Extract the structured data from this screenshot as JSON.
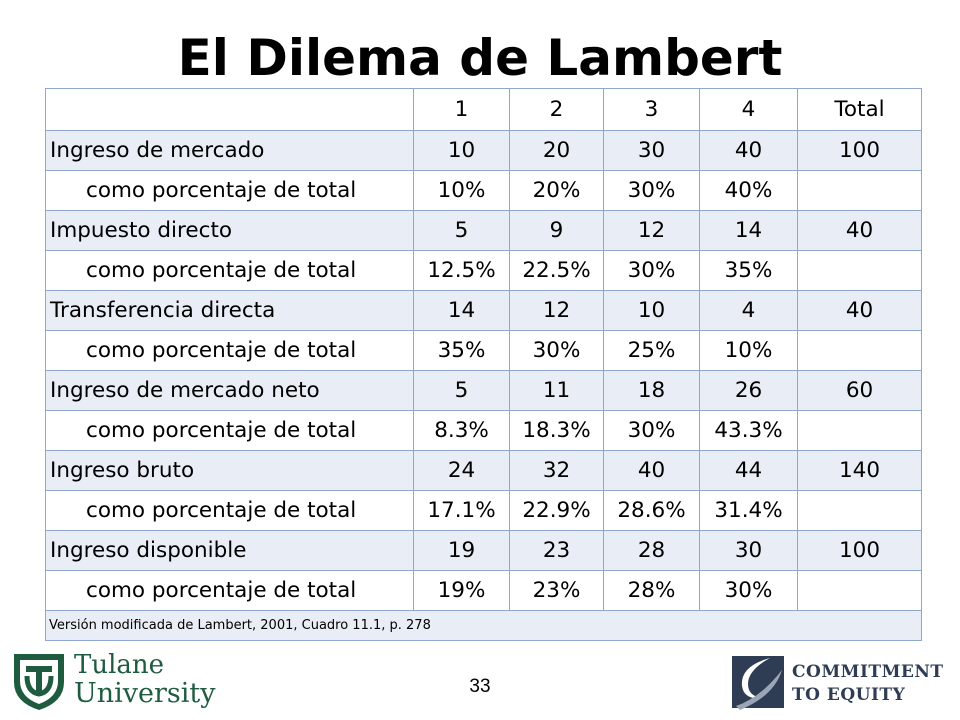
{
  "title": "El Dilema de Lambert",
  "table": {
    "columns": [
      "1",
      "2",
      "3",
      "4",
      "Total"
    ],
    "rows": [
      {
        "label": "Ingreso de mercado",
        "values": [
          "10",
          "20",
          "30",
          "40",
          "100"
        ]
      },
      {
        "label": "como porcentaje de total",
        "values": [
          "10%",
          "20%",
          "30%",
          "40%",
          ""
        ]
      },
      {
        "label": "Impuesto directo",
        "values": [
          "5",
          "9",
          "12",
          "14",
          "40"
        ]
      },
      {
        "label": "como porcentaje de total",
        "values": [
          "12.5%",
          "22.5%",
          "30%",
          "35%",
          ""
        ]
      },
      {
        "label": "Transferencia directa",
        "values": [
          "14",
          "12",
          "10",
          "4",
          "40"
        ]
      },
      {
        "label": "como porcentaje de total",
        "values": [
          "35%",
          "30%",
          "25%",
          "10%",
          ""
        ]
      },
      {
        "label": "Ingreso de mercado neto",
        "values": [
          "5",
          "11",
          "18",
          "26",
          "60"
        ]
      },
      {
        "label": "como porcentaje de total",
        "values": [
          "8.3%",
          "18.3%",
          "30%",
          "43.3%",
          ""
        ]
      },
      {
        "label": "Ingreso bruto",
        "values": [
          "24",
          "32",
          "40",
          "44",
          "140"
        ]
      },
      {
        "label": "como porcentaje de total",
        "values": [
          "17.1%",
          "22.9%",
          "28.6%",
          "31.4%",
          ""
        ]
      },
      {
        "label": "Ingreso disponible",
        "values": [
          "19",
          "23",
          "28",
          "30",
          "100"
        ]
      },
      {
        "label": "como porcentaje de total",
        "values": [
          "19%",
          "23%",
          "28%",
          "30%",
          ""
        ]
      }
    ],
    "note": "Versión modificada de Lambert, 2001, Cuadro 11.1, p. 278"
  },
  "footer": {
    "page_number": "33",
    "tulane_line1": "Tulane",
    "tulane_line2": "University",
    "cte_line1": "COMMITMENT",
    "cte_line2": "TO EQUITY"
  },
  "colors": {
    "row_shade": "#e9edf6",
    "border": "#8fa6cf",
    "tulane_green": "#1f5c3f",
    "cte_navy": "#2e3d53"
  },
  "icons": {
    "tulane_logo": "tulane-shield-icon",
    "cte_logo": "cte-swoosh-icon"
  }
}
